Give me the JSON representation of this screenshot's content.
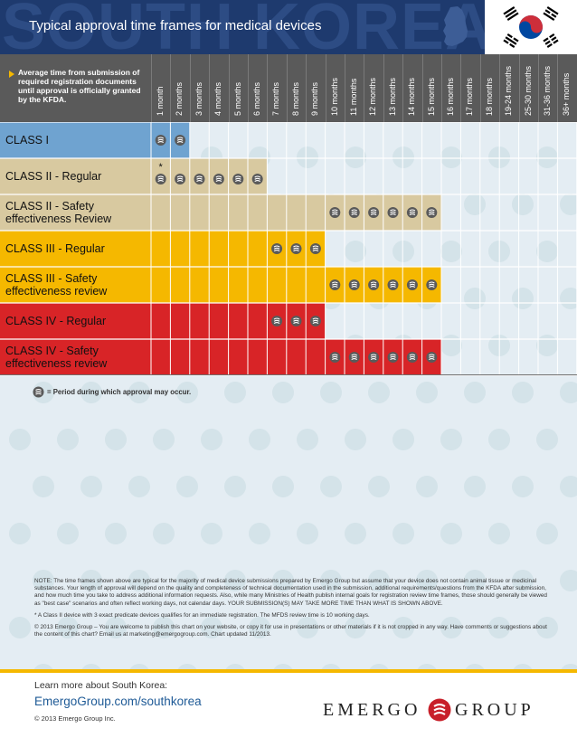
{
  "header": {
    "title": "Typical approval time frames for medical devices",
    "bg_text": "SOUTH KOREA"
  },
  "colors": {
    "header_bg": "#1e3a6e",
    "header_text_bg": "#2d4c84",
    "col_header_bg": "#5a5a5a",
    "accent": "#f5b800",
    "class_1": "#6fa3d0",
    "class_2": "#d8c9a0",
    "class_3": "#f5b800",
    "class_4": "#d82427",
    "empty_cell": "#e4edf3",
    "url": "#1e5a96"
  },
  "chart_data": {
    "type": "table",
    "title": "Typical approval time frames for medical devices",
    "row_header_label": "Average time from submission of required registration documents until approval is officially granted by the KFDA.",
    "columns": [
      "1 month",
      "2 months",
      "3 months",
      "4 months",
      "5 months",
      "6 months",
      "7 months",
      "8 months",
      "9 months",
      "10 months",
      "11 months",
      "12 months",
      "13 months",
      "14 months",
      "15 months",
      "16 months",
      "17 months",
      "18 months",
      "19-24 months",
      "25-30 months",
      "31-36 months",
      "36+ months"
    ],
    "rows": [
      {
        "label": "CLASS I",
        "color": "#6fa3d0",
        "fill_end": 2,
        "approval_months": [
          1,
          2
        ],
        "asterisk_month": null
      },
      {
        "label": "CLASS II - Regular",
        "color": "#d8c9a0",
        "fill_end": 6,
        "approval_months": [
          1,
          2,
          3,
          4,
          5,
          6
        ],
        "asterisk_month": 1
      },
      {
        "label": "CLASS II - Safety effectiveness Review",
        "color": "#d8c9a0",
        "fill_end": 15,
        "approval_months": [
          10,
          11,
          12,
          13,
          14,
          15
        ],
        "asterisk_month": null
      },
      {
        "label": "CLASS III - Regular",
        "color": "#f5b800",
        "fill_end": 9,
        "approval_months": [
          7,
          8,
          9
        ],
        "asterisk_month": null
      },
      {
        "label": "CLASS III - Safety effectiveness review",
        "color": "#f5b800",
        "fill_end": 15,
        "approval_months": [
          10,
          11,
          12,
          13,
          14,
          15
        ],
        "asterisk_month": null
      },
      {
        "label": "CLASS IV - Regular",
        "color": "#d82427",
        "fill_end": 9,
        "approval_months": [
          7,
          8,
          9
        ],
        "asterisk_month": null
      },
      {
        "label": "CLASS IV - Safety effectiveness review",
        "color": "#d82427",
        "fill_end": 15,
        "approval_months": [
          10,
          11,
          12,
          13,
          14,
          15
        ],
        "asterisk_month": null
      }
    ],
    "asterisk_symbol": "*",
    "legend": "= Period during which approval may occur."
  },
  "notes": {
    "note": "NOTE: The time frames shown above are typical for the majority of medical device submissions prepared by Emergo Group but assume that your device does not contain animal tissue or medicinal substances. Your length of approval will depend on the quality and completeness of technical documentation used in the submission, additional requirements/questions from the KFDA after submission, and how much time you take to address additional information requests. Also, while many Ministries of Health publish internal goals for registration review time frames, those should generally be viewed as \"best case\" scenarios and often reflect working days, not calendar days. YOUR SUBMISSION(S) MAY TAKE MORE TIME THAN WHAT IS SHOWN ABOVE.",
    "asterisk_note": "*  A Class II device with 3 exact predicate devices qualifies for an immediate registration. The MFDS review time is 10 working days.",
    "copyright_note": "© 2013 Emergo Group – You are welcome to publish this chart on your website, or copy it for use in presentations or other materials if it is not cropped in any way. Have comments or suggestions about the content of this chart? Email us at marketing@emergogroup.com. Chart updated 11/2013."
  },
  "footer": {
    "learn_more": "Learn more about South Korea:",
    "url": "EmergoGroup.com/southkorea",
    "copyright": "© 2013 Emergo Group Inc.",
    "logo_left": "EMERGO",
    "logo_right": "GROUP"
  }
}
